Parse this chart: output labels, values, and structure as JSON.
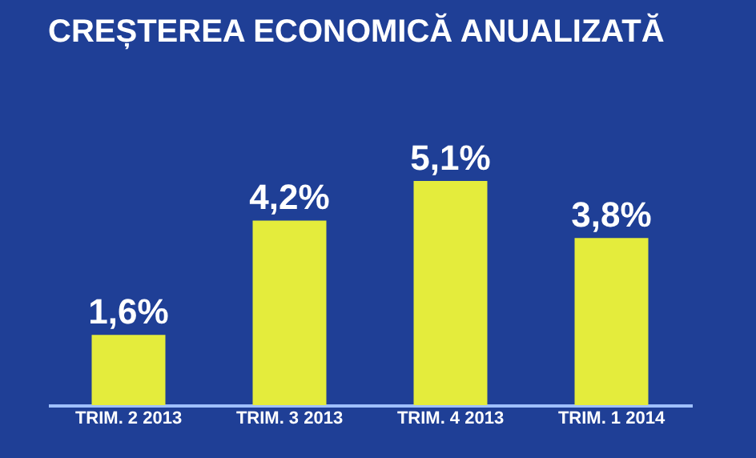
{
  "chart_data": {
    "type": "bar",
    "title": "CREȘTEREA ECONOMICĂ ANUALIZATĂ",
    "categories": [
      "TRIM. 2 2013",
      "TRIM. 3 2013",
      "TRIM. 4 2013",
      "TRIM. 1 2014"
    ],
    "values": [
      1.6,
      4.2,
      5.1,
      3.8
    ],
    "value_labels": [
      "1,6%",
      "4,2%",
      "5,1%",
      "3,8%"
    ],
    "color": "#e4ec3c",
    "tick_labels": "x"
  }
}
